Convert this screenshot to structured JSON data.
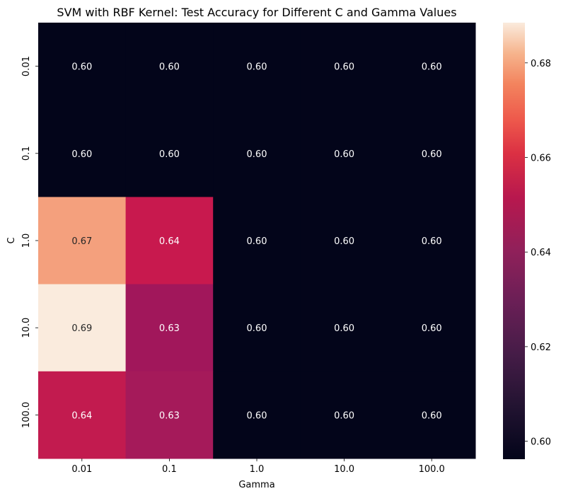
{
  "chart_data": {
    "type": "heatmap",
    "title": "SVM with RBF Kernel: Test Accuracy for Different C and Gamma Values",
    "xlabel": "Gamma",
    "ylabel": "C",
    "x_categories": [
      "0.01",
      "0.1",
      "1.0",
      "10.0",
      "100.0"
    ],
    "y_categories": [
      "0.01",
      "0.1",
      "1.0",
      "10.0",
      "100.0"
    ],
    "values": [
      [
        0.6,
        0.6,
        0.6,
        0.6,
        0.6
      ],
      [
        0.6,
        0.6,
        0.6,
        0.6,
        0.6
      ],
      [
        0.67,
        0.64,
        0.6,
        0.6,
        0.6
      ],
      [
        0.69,
        0.63,
        0.6,
        0.6,
        0.6
      ],
      [
        0.64,
        0.63,
        0.6,
        0.6,
        0.6
      ]
    ],
    "annotations": [
      [
        "0.60",
        "0.60",
        "0.60",
        "0.60",
        "0.60"
      ],
      [
        "0.60",
        "0.60",
        "0.60",
        "0.60",
        "0.60"
      ],
      [
        "0.67",
        "0.64",
        "0.60",
        "0.60",
        "0.60"
      ],
      [
        "0.69",
        "0.63",
        "0.60",
        "0.60",
        "0.60"
      ],
      [
        "0.64",
        "0.63",
        "0.60",
        "0.60",
        "0.60"
      ]
    ],
    "colormap": "rocket",
    "colorbar": {
      "range": [
        0.5962,
        0.6885
      ],
      "ticks": [
        0.6,
        0.62,
        0.64,
        0.66,
        0.68
      ],
      "tick_labels": [
        "0.60",
        "0.62",
        "0.64",
        "0.66",
        "0.68"
      ]
    },
    "cell_colors": [
      [
        "#03051a",
        "#03051a",
        "#03051a",
        "#03051a",
        "#03051a"
      ],
      [
        "#03051a",
        "#03051a",
        "#03051a",
        "#03051a",
        "#03051a"
      ],
      [
        "#f4a07d",
        "#c8194e",
        "#03051a",
        "#03051a",
        "#03051a"
      ],
      [
        "#faebdd",
        "#a1175b",
        "#03051a",
        "#03051a",
        "#03051a"
      ],
      [
        "#c21b4f",
        "#a51a5a",
        "#03051a",
        "#03051a",
        "#03051a"
      ]
    ],
    "grid": false
  }
}
